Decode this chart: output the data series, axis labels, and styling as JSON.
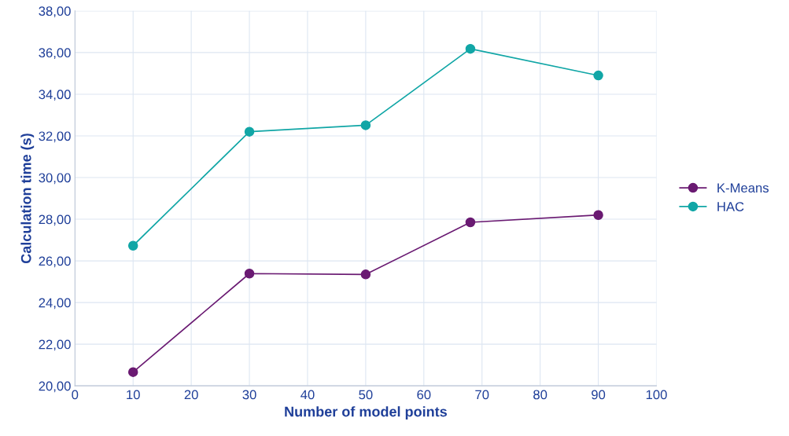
{
  "chart_data": {
    "type": "line",
    "xlabel": "Number of model points",
    "ylabel": "Calculation time (s)",
    "x": [
      10,
      30,
      50,
      68,
      90
    ],
    "series": [
      {
        "name": "K-Means",
        "color": "#6a1a72",
        "values": [
          20.66,
          25.39,
          25.35,
          27.85,
          28.2
        ]
      },
      {
        "name": "HAC",
        "color": "#11a6a6",
        "values": [
          26.73,
          32.2,
          32.51,
          36.18,
          34.9
        ]
      }
    ],
    "xlim": [
      0,
      100
    ],
    "xticks": [
      0,
      10,
      20,
      30,
      40,
      50,
      60,
      70,
      80,
      90,
      100
    ],
    "ylim": [
      20,
      38
    ],
    "yticks": [
      {
        "value": 20,
        "label": "20,00"
      },
      {
        "value": 22,
        "label": "22,00"
      },
      {
        "value": 24,
        "label": "24,00"
      },
      {
        "value": 26,
        "label": "26,00"
      },
      {
        "value": 28,
        "label": "28,00"
      },
      {
        "value": 30,
        "label": "30,00"
      },
      {
        "value": 32,
        "label": "32,00"
      },
      {
        "value": 34,
        "label": "34,00"
      },
      {
        "value": 36,
        "label": "36,00"
      },
      {
        "value": 38,
        "label": "38,00"
      }
    ],
    "grid": true,
    "legend": "right",
    "marker": "circle",
    "line_style": "solid"
  }
}
